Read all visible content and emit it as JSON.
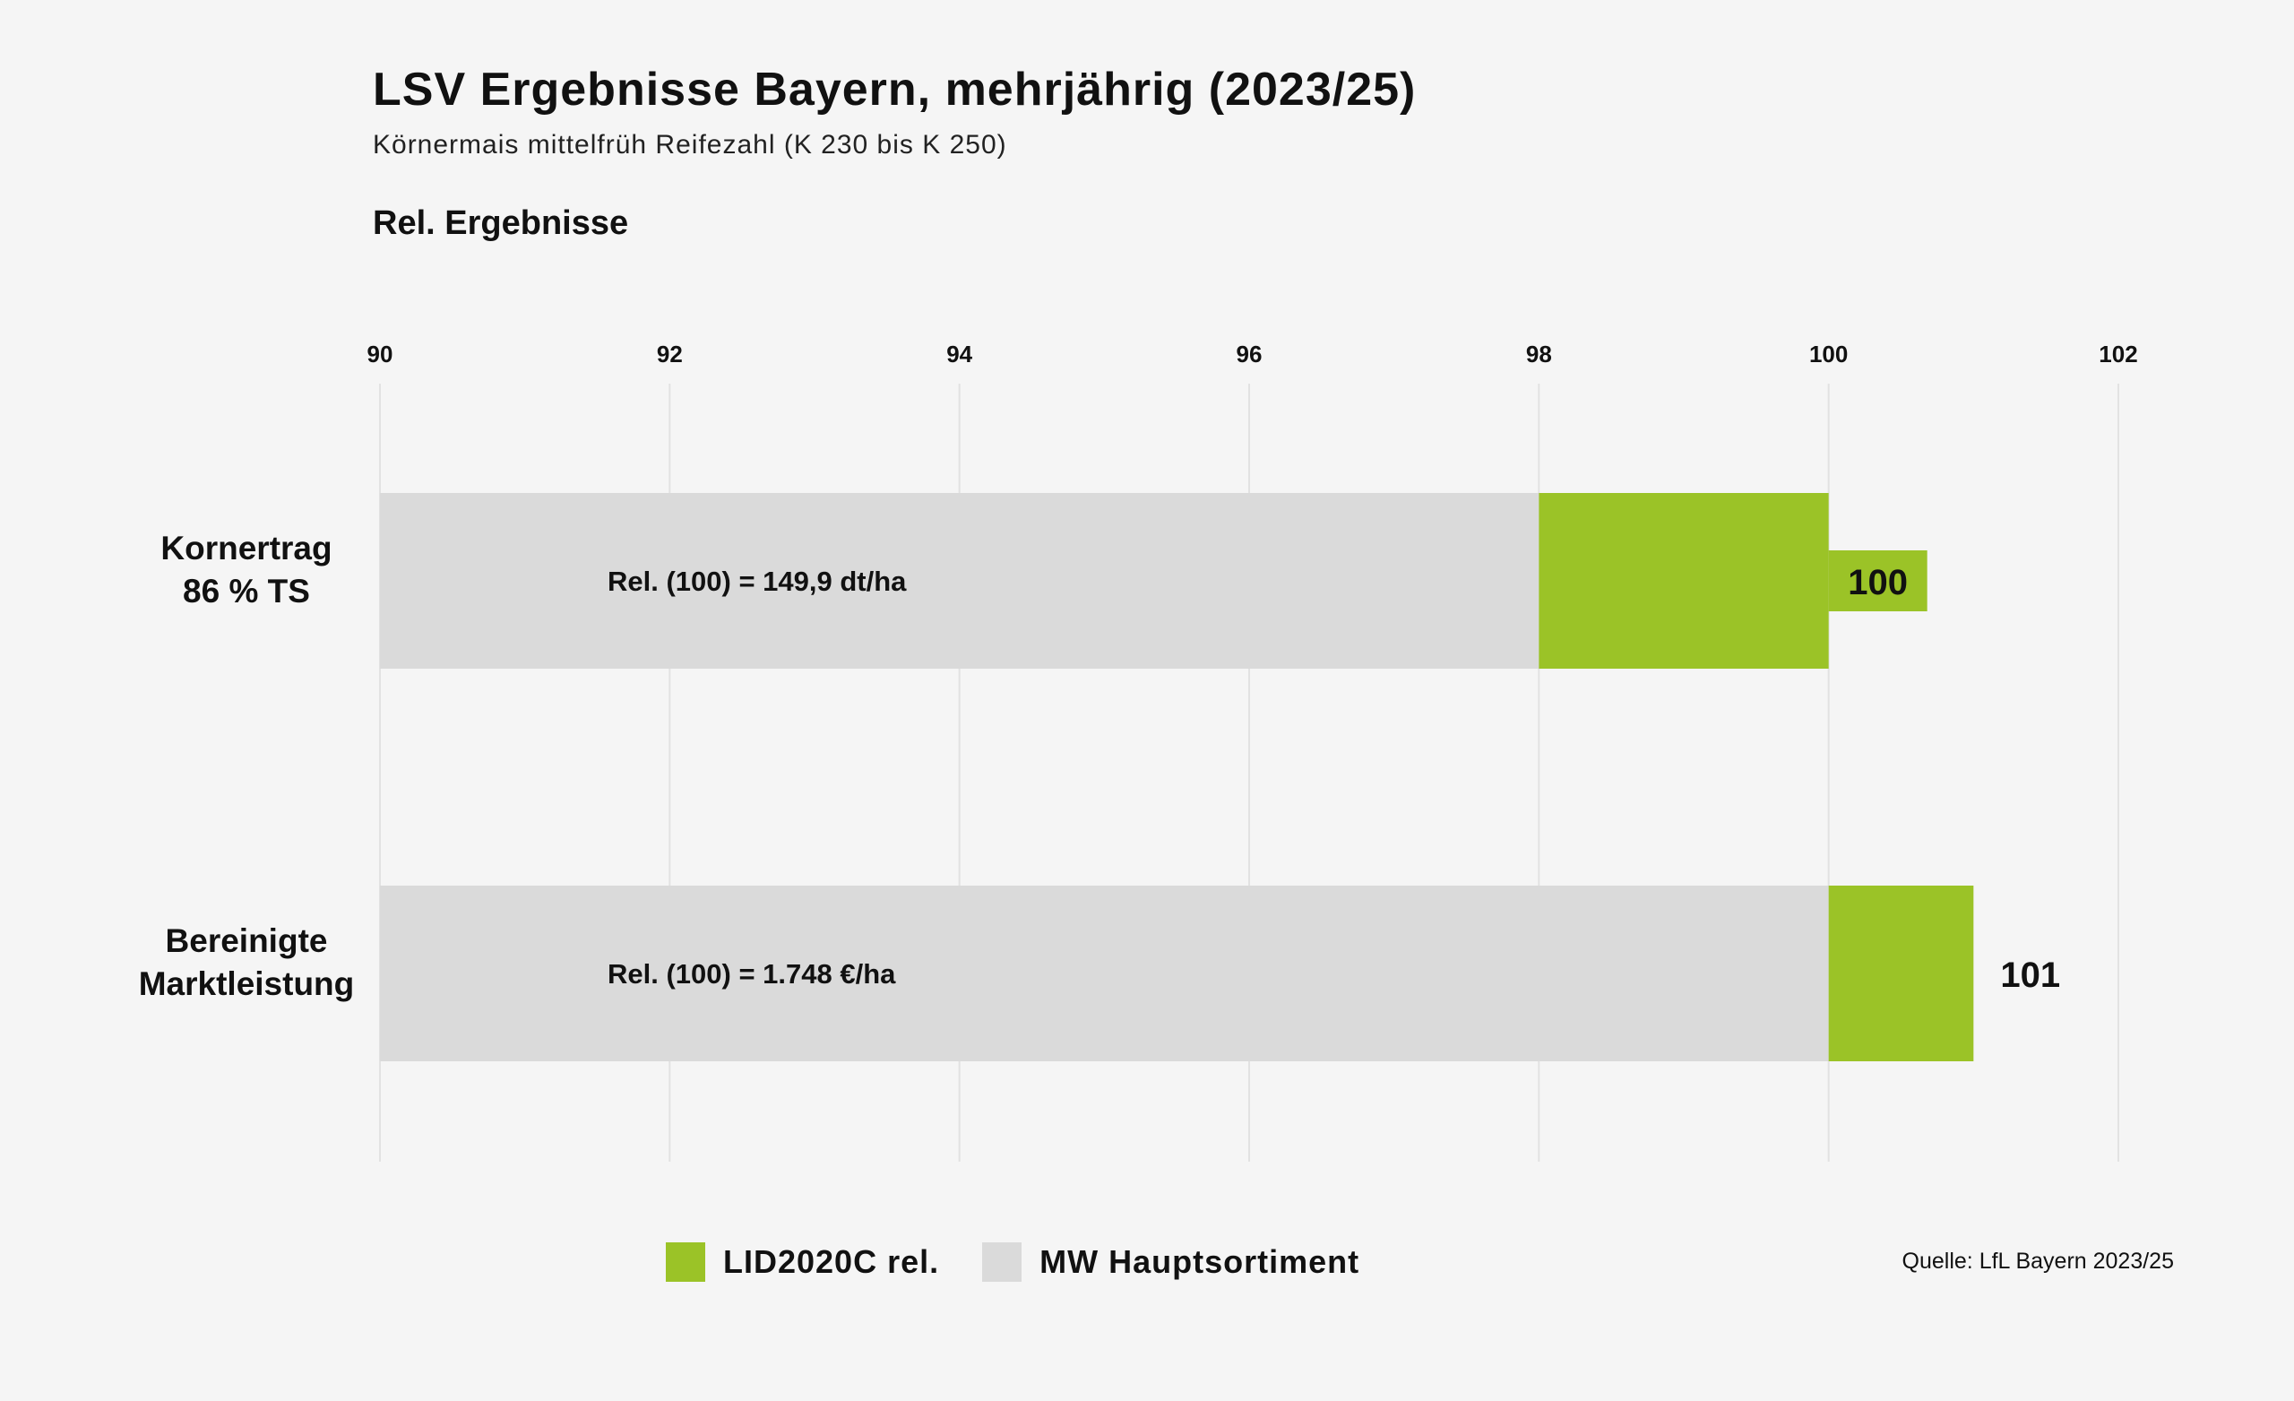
{
  "header": {
    "title": "LSV Ergebnisse Bayern, mehrjährig (2023/25)",
    "subtitle": "Körnermais mittelfrüh Reifezahl (K 230 bis K 250)",
    "section": "Rel. Ergebnisse"
  },
  "colors": {
    "accent": "#9bc327",
    "reference": "#dadada",
    "grid": "#e2e2e2",
    "background": "#f5f5f5"
  },
  "chart_data": {
    "type": "bar",
    "orientation": "horizontal",
    "xlim": [
      90,
      102
    ],
    "ticks": [
      90,
      92,
      94,
      96,
      98,
      100,
      102
    ],
    "categories": [
      "Kornertrag\n86 % TS",
      "Bereinigte\nMarktleistung"
    ],
    "series": [
      {
        "name": "MW Hauptsortiment",
        "color": "#dadada",
        "values": [
          98,
          100
        ]
      },
      {
        "name": "LID2020C rel.",
        "color": "#9bc327",
        "values": [
          100,
          101
        ]
      }
    ],
    "labels": [
      "100",
      "101"
    ],
    "annotations": [
      "Rel. (100) = 149,9 dt/ha",
      "Rel. (100) = 1.748 €/ha"
    ],
    "legend_position": "bottom",
    "grid": true
  },
  "legend": [
    {
      "label": "LID2020C rel.",
      "color": "#9bc327"
    },
    {
      "label": "MW Hauptsortiment",
      "color": "#dadada"
    }
  ],
  "source": "Quelle: LfL Bayern 2023/25"
}
